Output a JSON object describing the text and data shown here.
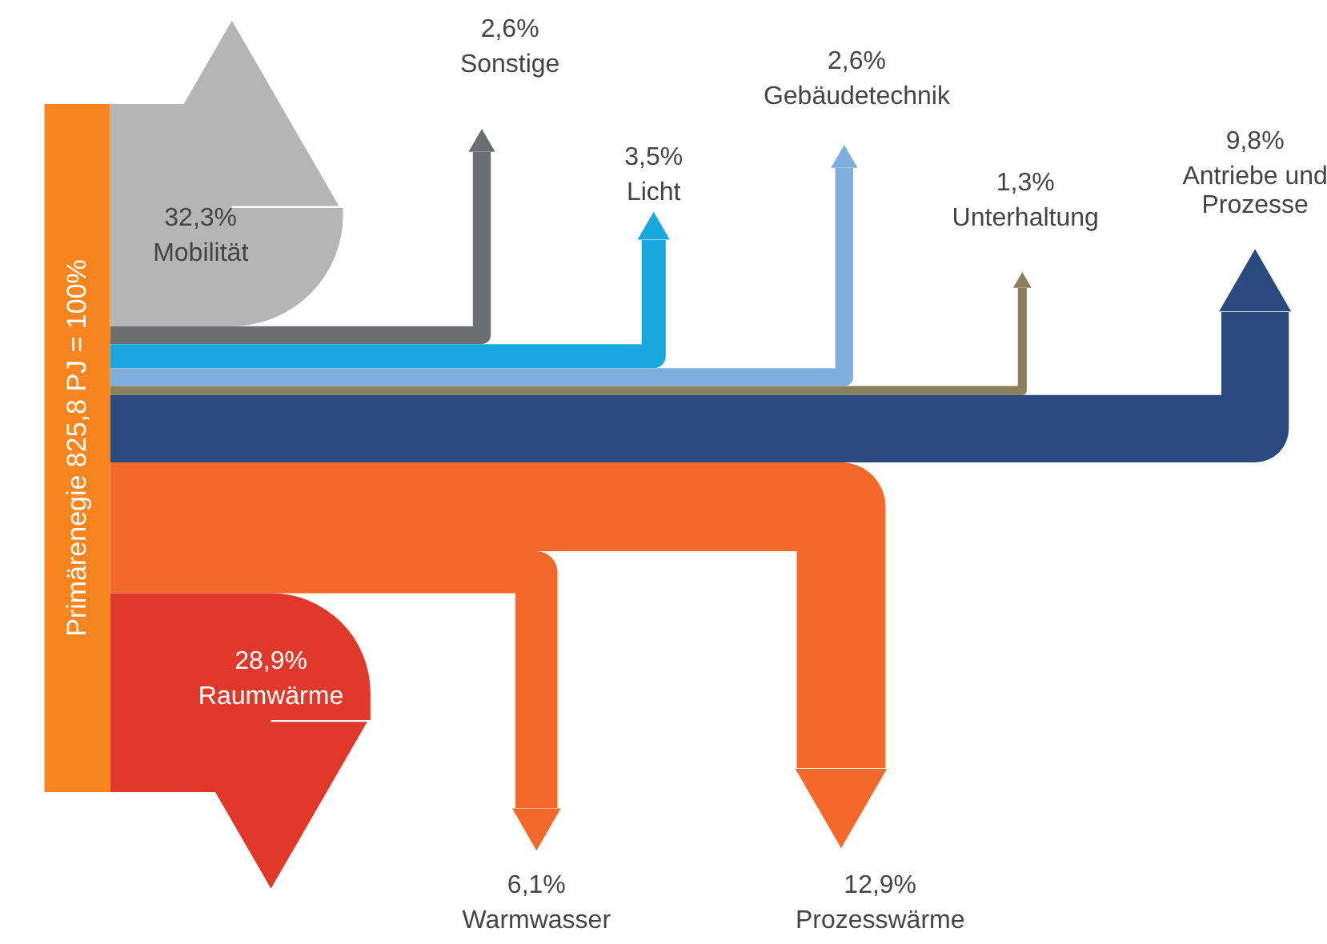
{
  "chart_data": {
    "type": "other",
    "annotations": [
      "Primärenegie 825,8 PJ = 100%"
    ],
    "categories": [
      "Mobilität",
      "Sonstige",
      "Licht",
      "Gebäudetechnik",
      "Unterhaltung",
      "Antriebe und\nProzesse",
      "Prozesswärme",
      "Warmwasser",
      "Raumwärme"
    ],
    "values": [
      32.3,
      2.6,
      3.5,
      2.6,
      1.3,
      9.8,
      12.9,
      6.1,
      28.9
    ],
    "value_labels": [
      "32,3%",
      "2,6%",
      "3,5%",
      "2,6%",
      "1,3%",
      "9,8%",
      "12,9%",
      "6,1%",
      "28,9%"
    ],
    "colors": [
      "#b5b5b6",
      "#6d6e70",
      "#1aa7e0",
      "#7eaedb",
      "#8a7f5f",
      "#2b4a80",
      "#f4692a",
      "#f4692a",
      "#e0392b"
    ]
  }
}
